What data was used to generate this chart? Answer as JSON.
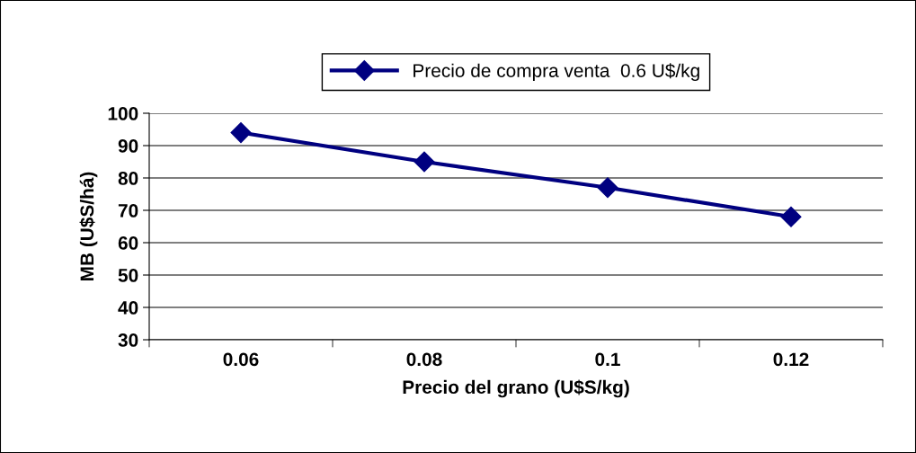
{
  "chart_data": {
    "type": "line",
    "xlabel": "Precio del grano (U$S/kg)",
    "ylabel": "MB (U$S/há)",
    "categories": [
      "0.06",
      "0.08",
      "0.1",
      "0.12"
    ],
    "series": [
      {
        "name": "Precio de compra venta  0.6 U$/kg",
        "color": "#000080",
        "values": [
          94,
          85,
          77,
          68
        ]
      }
    ],
    "ylim": [
      30,
      100
    ],
    "yticks": [
      30,
      40,
      50,
      60,
      70,
      80,
      90,
      100
    ],
    "grid": "y",
    "legend": "top",
    "marker": "diamond",
    "line_style": "solid"
  }
}
